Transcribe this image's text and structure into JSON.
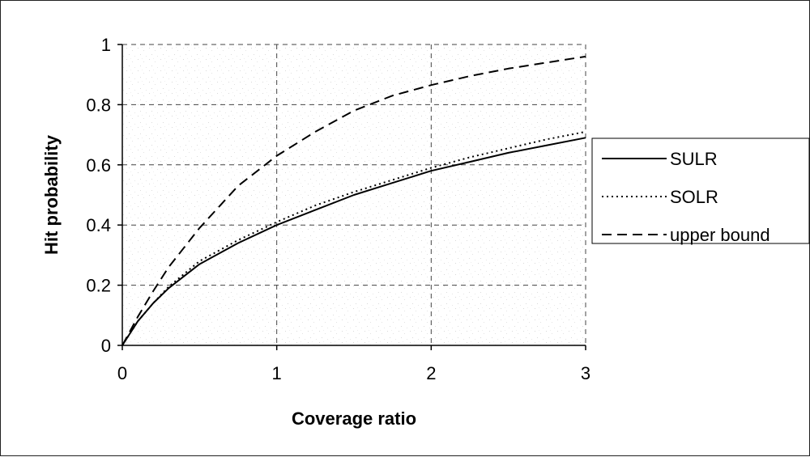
{
  "chart_data": {
    "type": "line",
    "xlabel": "Coverage ratio",
    "ylabel": "Hit probability",
    "xlim": [
      0,
      3
    ],
    "ylim": [
      0,
      1
    ],
    "xticks": [
      "0",
      "1",
      "2",
      "3"
    ],
    "yticks": [
      "0",
      "0.2",
      "0.4",
      "0.6",
      "0.8",
      "1"
    ],
    "grid": "dashed",
    "legend_position": "right",
    "x": [
      0,
      0.1,
      0.2,
      0.3,
      0.5,
      0.75,
      1,
      1.25,
      1.5,
      1.75,
      2,
      2.25,
      2.5,
      2.75,
      3
    ],
    "series": [
      {
        "name": "SULR",
        "line_style": "solid",
        "color": "#000000",
        "values": [
          0,
          0.08,
          0.14,
          0.19,
          0.27,
          0.34,
          0.4,
          0.45,
          0.5,
          0.54,
          0.58,
          0.61,
          0.64,
          0.665,
          0.69
        ]
      },
      {
        "name": "SOLR",
        "line_style": "dotted",
        "color": "#000000",
        "values": [
          0,
          0.08,
          0.14,
          0.195,
          0.28,
          0.35,
          0.41,
          0.465,
          0.51,
          0.55,
          0.59,
          0.625,
          0.655,
          0.685,
          0.71
        ]
      },
      {
        "name": "upper bound",
        "line_style": "dashed",
        "color": "#000000",
        "values": [
          0,
          0.095,
          0.18,
          0.26,
          0.39,
          0.53,
          0.63,
          0.71,
          0.78,
          0.83,
          0.865,
          0.895,
          0.92,
          0.94,
          0.96
        ]
      }
    ]
  }
}
